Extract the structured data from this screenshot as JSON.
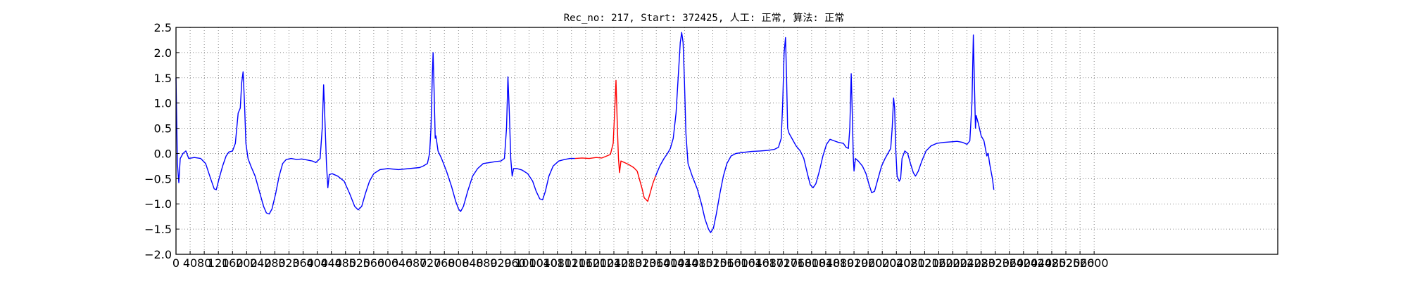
{
  "chart_data": {
    "type": "line",
    "title": "Rec_no: 217, Start: 372425, 人工: 正常, 算法: 正常",
    "xlabel": "",
    "ylabel": "",
    "xlim": [
      0,
      3120
    ],
    "ylim": [
      -2.0,
      2.5
    ],
    "grid": true,
    "grid_style": "dotted",
    "yticks": [
      2.5,
      2.0,
      1.5,
      1.0,
      0.5,
      0.0,
      -0.5,
      -1.0,
      -1.5,
      -2.0
    ],
    "ytick_labels": [
      "2.5",
      "2.0",
      "1.5",
      "1.0",
      "0.5",
      "0.0",
      "−0.5",
      "−1.0",
      "−1.5",
      "−2.0"
    ],
    "xticks": [
      0,
      40,
      80,
      120,
      160,
      200,
      240,
      280,
      320,
      360,
      400,
      440,
      480,
      520,
      560,
      600,
      640,
      680,
      720,
      760,
      800,
      840,
      880,
      920,
      960,
      1000,
      1040,
      1080,
      1120,
      1160,
      1200,
      1240,
      1280,
      1320,
      1360,
      1400,
      1440,
      1480,
      1520,
      1560,
      1600,
      1640,
      1680,
      1720,
      1760,
      1800,
      1840,
      1880,
      1920,
      1960,
      2000,
      2040,
      2080,
      2120,
      2160,
      2200,
      2240,
      2280,
      2320,
      2360,
      2400,
      2440,
      2480,
      2520,
      2560,
      2600
    ],
    "xtick_labels": [
      "0",
      "40",
      "80",
      "120",
      "160",
      "200",
      "240",
      "280",
      "320",
      "360",
      "400",
      "440",
      "480",
      "520",
      "560",
      "600",
      "640",
      "680",
      "720",
      "760",
      "800",
      "840",
      "880",
      "920",
      "960",
      "1000",
      "1040",
      "1080",
      "1120",
      "1160",
      "1200",
      "1240",
      "1280",
      "1320",
      "1360",
      "1400",
      "1440",
      "1480",
      "1520",
      "1560",
      "1600",
      "1640",
      "1680",
      "1720",
      "1760",
      "1800",
      "1840",
      "1880",
      "1920",
      "1960",
      "2000",
      "2040",
      "2080",
      "2120",
      "2160",
      "2200",
      "2240",
      "2280",
      "2320",
      "2360",
      "2400",
      "2440",
      "2480",
      "2520",
      "2560",
      "2600"
    ],
    "colors": {
      "series_main": "#0000ff",
      "series_highlight": "#ff0000",
      "grid": "#666666",
      "axes": "#000000"
    },
    "series": [
      {
        "color": "#0000ff",
        "points": [
          [
            0,
            1.5
          ],
          [
            4,
            -0.2
          ],
          [
            8,
            -0.58
          ],
          [
            12,
            -0.1
          ],
          [
            20,
            0.0
          ],
          [
            28,
            0.05
          ],
          [
            36,
            -0.1
          ],
          [
            52,
            -0.08
          ],
          [
            70,
            -0.1
          ],
          [
            84,
            -0.2
          ],
          [
            98,
            -0.5
          ],
          [
            108,
            -0.7
          ],
          [
            114,
            -0.72
          ],
          [
            122,
            -0.5
          ],
          [
            132,
            -0.25
          ],
          [
            142,
            -0.05
          ],
          [
            150,
            0.03
          ],
          [
            160,
            0.05
          ],
          [
            168,
            0.2
          ],
          [
            176,
            0.8
          ],
          [
            182,
            0.9
          ],
          [
            186,
            1.4
          ],
          [
            190,
            1.62
          ],
          [
            194,
            1.0
          ],
          [
            198,
            0.2
          ],
          [
            204,
            -0.1
          ],
          [
            212,
            -0.25
          ],
          [
            224,
            -0.45
          ],
          [
            236,
            -0.75
          ],
          [
            248,
            -1.05
          ],
          [
            256,
            -1.18
          ],
          [
            264,
            -1.2
          ],
          [
            272,
            -1.1
          ],
          [
            282,
            -0.8
          ],
          [
            292,
            -0.45
          ],
          [
            302,
            -0.2
          ],
          [
            312,
            -0.12
          ],
          [
            326,
            -0.1
          ],
          [
            342,
            -0.12
          ],
          [
            356,
            -0.11
          ],
          [
            372,
            -0.13
          ],
          [
            386,
            -0.15
          ],
          [
            396,
            -0.18
          ],
          [
            408,
            -0.1
          ],
          [
            414,
            0.5
          ],
          [
            418,
            1.36
          ],
          [
            422,
            0.6
          ],
          [
            426,
            -0.2
          ],
          [
            430,
            -0.68
          ],
          [
            434,
            -0.42
          ],
          [
            442,
            -0.4
          ],
          [
            458,
            -0.45
          ],
          [
            476,
            -0.55
          ],
          [
            492,
            -0.8
          ],
          [
            506,
            -1.05
          ],
          [
            516,
            -1.12
          ],
          [
            526,
            -1.05
          ],
          [
            536,
            -0.8
          ],
          [
            548,
            -0.55
          ],
          [
            560,
            -0.4
          ],
          [
            578,
            -0.32
          ],
          [
            600,
            -0.3
          ],
          [
            630,
            -0.32
          ],
          [
            660,
            -0.3
          ],
          [
            690,
            -0.28
          ],
          [
            700,
            -0.25
          ],
          [
            712,
            -0.2
          ],
          [
            718,
            0.0
          ],
          [
            722,
            0.5
          ],
          [
            726,
            1.6
          ],
          [
            728,
            2.0
          ],
          [
            731,
            1.2
          ],
          [
            734,
            0.3
          ],
          [
            736,
            0.35
          ],
          [
            742,
            0.05
          ],
          [
            752,
            -0.1
          ],
          [
            766,
            -0.35
          ],
          [
            780,
            -0.65
          ],
          [
            792,
            -0.95
          ],
          [
            800,
            -1.1
          ],
          [
            806,
            -1.15
          ],
          [
            814,
            -1.05
          ],
          [
            826,
            -0.75
          ],
          [
            840,
            -0.45
          ],
          [
            854,
            -0.3
          ],
          [
            870,
            -0.2
          ],
          [
            888,
            -0.18
          ],
          [
            906,
            -0.16
          ],
          [
            920,
            -0.15
          ],
          [
            930,
            -0.1
          ],
          [
            936,
            0.5
          ],
          [
            940,
            1.52
          ],
          [
            944,
            0.8
          ],
          [
            948,
            -0.1
          ],
          [
            952,
            -0.45
          ],
          [
            956,
            -0.3
          ],
          [
            966,
            -0.3
          ],
          [
            980,
            -0.33
          ],
          [
            996,
            -0.4
          ],
          [
            1010,
            -0.55
          ],
          [
            1020,
            -0.75
          ],
          [
            1030,
            -0.9
          ],
          [
            1038,
            -0.92
          ],
          [
            1046,
            -0.75
          ],
          [
            1056,
            -0.45
          ],
          [
            1068,
            -0.25
          ],
          [
            1084,
            -0.15
          ],
          [
            1100,
            -0.12
          ],
          [
            1116,
            -0.1
          ],
          [
            1130,
            -0.1
          ]
        ]
      },
      {
        "color": "#ff0000",
        "points": [
          [
            1130,
            -0.1
          ],
          [
            1150,
            -0.09
          ],
          [
            1170,
            -0.1
          ],
          [
            1190,
            -0.08
          ],
          [
            1206,
            -0.09
          ],
          [
            1220,
            -0.05
          ],
          [
            1230,
            -0.02
          ],
          [
            1238,
            0.2
          ],
          [
            1242,
            0.8
          ],
          [
            1246,
            1.45
          ],
          [
            1250,
            0.5
          ],
          [
            1253,
            -0.1
          ],
          [
            1256,
            -0.38
          ],
          [
            1260,
            -0.15
          ],
          [
            1270,
            -0.18
          ],
          [
            1282,
            -0.22
          ],
          [
            1296,
            -0.28
          ],
          [
            1306,
            -0.35
          ],
          [
            1314,
            -0.55
          ],
          [
            1320,
            -0.7
          ],
          [
            1326,
            -0.88
          ],
          [
            1332,
            -0.92
          ],
          [
            1336,
            -0.95
          ],
          [
            1342,
            -0.8
          ],
          [
            1350,
            -0.6
          ],
          [
            1358,
            -0.45
          ]
        ]
      },
      {
        "color": "#0000ff",
        "points": [
          [
            1358,
            -0.45
          ],
          [
            1370,
            -0.25
          ],
          [
            1382,
            -0.1
          ],
          [
            1392,
            0.0
          ],
          [
            1400,
            0.1
          ],
          [
            1408,
            0.3
          ],
          [
            1416,
            0.8
          ],
          [
            1422,
            1.5
          ],
          [
            1428,
            2.2
          ],
          [
            1432,
            2.4
          ],
          [
            1436,
            2.2
          ],
          [
            1440,
            1.4
          ],
          [
            1444,
            0.4
          ],
          [
            1450,
            -0.2
          ],
          [
            1462,
            -0.45
          ],
          [
            1476,
            -0.7
          ],
          [
            1488,
            -1.0
          ],
          [
            1498,
            -1.3
          ],
          [
            1508,
            -1.5
          ],
          [
            1514,
            -1.57
          ],
          [
            1522,
            -1.48
          ],
          [
            1530,
            -1.2
          ],
          [
            1540,
            -0.8
          ],
          [
            1550,
            -0.45
          ],
          [
            1560,
            -0.2
          ],
          [
            1572,
            -0.05
          ],
          [
            1586,
            0.0
          ],
          [
            1606,
            0.02
          ],
          [
            1630,
            0.04
          ],
          [
            1654,
            0.05
          ],
          [
            1676,
            0.06
          ],
          [
            1694,
            0.08
          ],
          [
            1706,
            0.12
          ],
          [
            1714,
            0.3
          ],
          [
            1718,
            1.0
          ],
          [
            1722,
            2.0
          ],
          [
            1726,
            2.3
          ],
          [
            1729,
            1.5
          ],
          [
            1732,
            0.5
          ],
          [
            1736,
            0.4
          ],
          [
            1744,
            0.3
          ],
          [
            1756,
            0.15
          ],
          [
            1768,
            0.05
          ],
          [
            1778,
            -0.1
          ],
          [
            1788,
            -0.4
          ],
          [
            1796,
            -0.62
          ],
          [
            1804,
            -0.68
          ],
          [
            1812,
            -0.6
          ],
          [
            1822,
            -0.35
          ],
          [
            1832,
            -0.05
          ],
          [
            1842,
            0.18
          ],
          [
            1852,
            0.28
          ],
          [
            1864,
            0.25
          ],
          [
            1876,
            0.22
          ],
          [
            1890,
            0.2
          ],
          [
            1898,
            0.12
          ],
          [
            1904,
            0.1
          ],
          [
            1908,
            0.5
          ],
          [
            1912,
            1.58
          ],
          [
            1915,
            0.8
          ],
          [
            1918,
            -0.1
          ],
          [
            1920,
            -0.35
          ],
          [
            1924,
            -0.1
          ],
          [
            1932,
            -0.15
          ],
          [
            1944,
            -0.25
          ],
          [
            1954,
            -0.4
          ],
          [
            1962,
            -0.6
          ],
          [
            1970,
            -0.78
          ],
          [
            1978,
            -0.75
          ],
          [
            1988,
            -0.5
          ],
          [
            1998,
            -0.25
          ],
          [
            2008,
            -0.1
          ],
          [
            2016,
            0.0
          ],
          [
            2024,
            0.1
          ],
          [
            2028,
            0.5
          ],
          [
            2032,
            1.1
          ],
          [
            2035,
            0.9
          ],
          [
            2038,
            0.1
          ],
          [
            2042,
            -0.45
          ],
          [
            2048,
            -0.55
          ],
          [
            2052,
            -0.5
          ],
          [
            2056,
            -0.1
          ],
          [
            2064,
            0.05
          ],
          [
            2072,
            0.0
          ],
          [
            2080,
            -0.2
          ],
          [
            2088,
            -0.38
          ],
          [
            2094,
            -0.45
          ],
          [
            2102,
            -0.35
          ],
          [
            2112,
            -0.15
          ],
          [
            2124,
            0.05
          ],
          [
            2138,
            0.15
          ],
          [
            2154,
            0.2
          ],
          [
            2174,
            0.22
          ],
          [
            2194,
            0.23
          ],
          [
            2212,
            0.24
          ],
          [
            2228,
            0.22
          ],
          [
            2240,
            0.18
          ],
          [
            2248,
            0.25
          ],
          [
            2254,
            1.0
          ],
          [
            2258,
            2.35
          ],
          [
            2261,
            1.4
          ],
          [
            2264,
            0.5
          ],
          [
            2266,
            0.75
          ],
          [
            2272,
            0.6
          ],
          [
            2280,
            0.35
          ],
          [
            2288,
            0.25
          ],
          [
            2292,
            0.1
          ],
          [
            2296,
            -0.05
          ],
          [
            2300,
            0.0
          ],
          [
            2304,
            -0.2
          ],
          [
            2308,
            -0.35
          ],
          [
            2312,
            -0.5
          ],
          [
            2316,
            -0.72
          ]
        ]
      }
    ]
  }
}
